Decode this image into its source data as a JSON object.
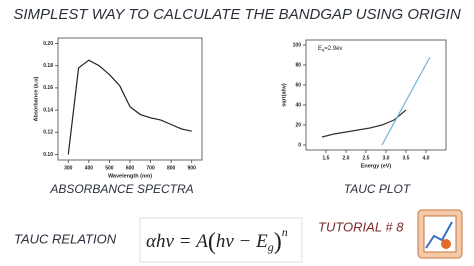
{
  "title": "SIMPLEST WAY TO CALCULATE THE BANDGAP USING ORIGIN",
  "chart_data": [
    {
      "type": "line",
      "caption": "ABSORBANCE SPECTRA",
      "xlabel": "Wavelength (nm)",
      "ylabel": "Absorbance (a.u)",
      "xlim": [
        250,
        950
      ],
      "xticks": [
        300,
        400,
        500,
        600,
        700,
        800,
        900
      ],
      "ylim": [
        0.095,
        0.205
      ],
      "yticks": [
        {
          "value": 0.1,
          "label": "0.10"
        },
        {
          "value": 0.12,
          "label": "0.12"
        },
        {
          "value": 0.14,
          "label": "0.14"
        },
        {
          "value": 0.16,
          "label": "0.16"
        },
        {
          "value": 0.18,
          "label": "0.18"
        },
        {
          "value": 0.2,
          "label": "0.20"
        }
      ],
      "series": [
        {
          "color": "#222222",
          "x": [
            300,
            350,
            400,
            450,
            500,
            550,
            600,
            650,
            700,
            750,
            800,
            850,
            900
          ],
          "values": [
            0.1,
            0.178,
            0.185,
            0.18,
            0.172,
            0.162,
            0.143,
            0.136,
            0.133,
            0.131,
            0.127,
            0.123,
            0.121
          ]
        }
      ]
    },
    {
      "type": "line",
      "caption": "TAUC PLOT",
      "xlabel": "Energy (eV)",
      "ylabel": "sqrt(ahv)",
      "annotation": "E",
      "annotation_sub": "g",
      "annotation_rest": "=2.9ev",
      "xlim": [
        1.0,
        4.5
      ],
      "xticks": [
        1.5,
        {
          "value": 2.0,
          "label": "2.0"
        },
        2.5,
        {
          "value": 3.0,
          "label": "3.0"
        },
        3.5,
        {
          "value": 4.0,
          "label": "4.0"
        }
      ],
      "ylim": [
        -5,
        105
      ],
      "yticks": [
        0,
        20,
        40,
        60,
        80,
        100
      ],
      "series": [
        {
          "color": "#333333",
          "x": [
            1.4,
            1.7,
            2.0,
            2.3,
            2.6,
            2.9,
            3.2,
            3.5
          ],
          "values": [
            8,
            11,
            13,
            15,
            17,
            20,
            25,
            35
          ]
        },
        {
          "color": "#6fb3d9",
          "x": [
            2.9,
            4.1
          ],
          "values": [
            0,
            88
          ]
        }
      ]
    }
  ],
  "left_label": "TAUC RELATION",
  "equation": {
    "lhs": "αhν = A",
    "open": "(",
    "inner": "hν − E",
    "sub": "g",
    "close": ")",
    "power": "n"
  },
  "tutorial": "TUTORIAL # 8"
}
